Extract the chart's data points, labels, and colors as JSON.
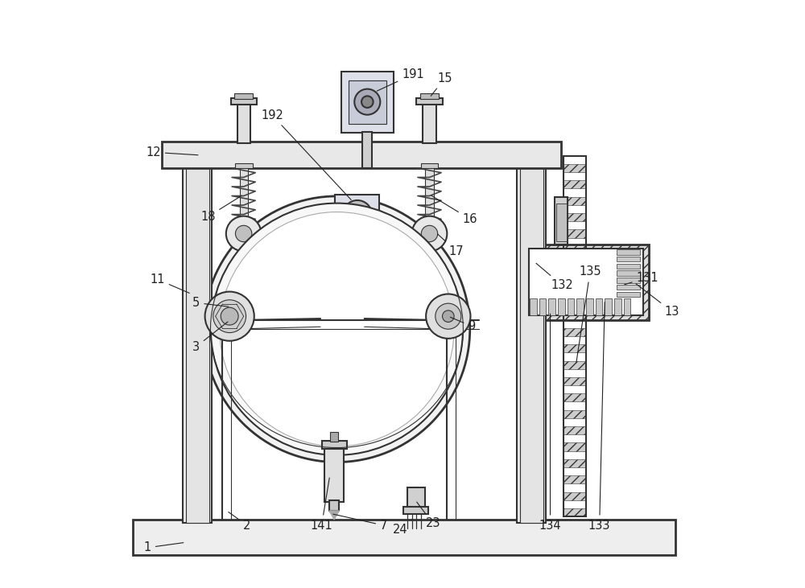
{
  "bg_color": "#ffffff",
  "line_color": "#333333",
  "label_color": "#222222",
  "fig_width": 10.0,
  "fig_height": 7.31
}
